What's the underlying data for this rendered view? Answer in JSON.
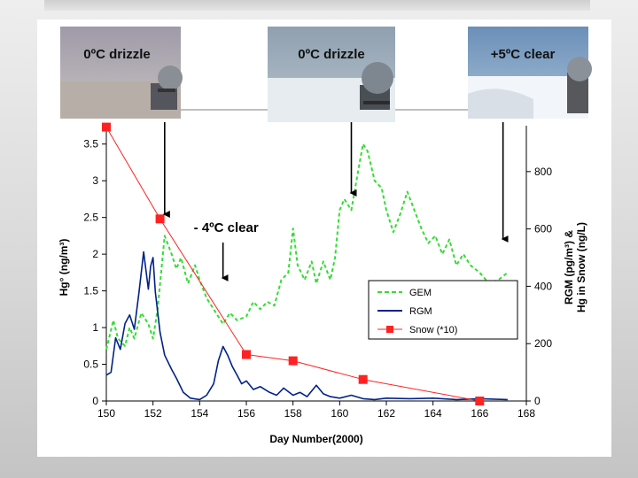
{
  "chart_data": {
    "type": "line",
    "xlabel": "Day Number(2000)",
    "ylabel_left": "Hg° (ng/m³)",
    "ylabel_right_line1": "RGM (pg/m³) &",
    "ylabel_right_line2": "Hg in Snow (ng/L)",
    "xlim": [
      150,
      168
    ],
    "ylim_left": [
      0,
      3.75
    ],
    "ylim_right": [
      0,
      960
    ],
    "x_ticks": [
      "150",
      "152",
      "154",
      "156",
      "158",
      "160",
      "162",
      "164",
      "166",
      "168"
    ],
    "y_left_ticks": [
      "0",
      "0.5",
      "1",
      "1.5",
      "2",
      "2.5",
      "3",
      "3.5"
    ],
    "y_right_ticks": [
      "0",
      "200",
      "400",
      "600",
      "800"
    ],
    "legend": {
      "position": "center-right",
      "entries": [
        "GEM",
        "RGM",
        "Snow (*10)"
      ]
    },
    "series": [
      {
        "name": "GEM",
        "axis": "left",
        "color": "#33dd33",
        "style": "dashed",
        "x": [
          150.0,
          150.3,
          150.5,
          150.8,
          151.0,
          151.2,
          151.5,
          151.8,
          152.0,
          152.2,
          152.5,
          152.8,
          153.0,
          153.2,
          153.5,
          153.8,
          154.0,
          154.3,
          154.6,
          155.0,
          155.3,
          155.6,
          156.0,
          156.3,
          156.6,
          156.9,
          157.2,
          157.5,
          157.8,
          158.0,
          158.2,
          158.5,
          158.8,
          159.0,
          159.3,
          159.6,
          159.8,
          160.0,
          160.2,
          160.5,
          160.8,
          161.0,
          161.2,
          161.5,
          161.8,
          162.0,
          162.3,
          162.6,
          162.9,
          163.2,
          163.5,
          163.8,
          164.1,
          164.4,
          164.7,
          165.0,
          165.3,
          165.6,
          166.0,
          166.4,
          166.8,
          167.2
        ],
        "y": [
          0.7,
          1.1,
          0.85,
          0.75,
          1.0,
          0.85,
          1.2,
          1.05,
          0.85,
          1.25,
          2.25,
          2.0,
          1.8,
          1.95,
          1.6,
          1.85,
          1.65,
          1.4,
          1.25,
          1.05,
          1.2,
          1.1,
          1.15,
          1.35,
          1.25,
          1.35,
          1.3,
          1.65,
          1.75,
          2.35,
          1.85,
          1.65,
          1.9,
          1.6,
          1.9,
          1.65,
          1.95,
          2.6,
          2.75,
          2.6,
          3.15,
          3.5,
          3.4,
          3.0,
          2.9,
          2.6,
          2.3,
          2.55,
          2.85,
          2.6,
          2.35,
          2.15,
          2.25,
          2.0,
          2.2,
          1.85,
          2.0,
          1.85,
          1.75,
          1.6,
          1.65,
          1.75
        ]
      },
      {
        "name": "RGM",
        "axis": "right",
        "color": "#002288",
        "style": "solid",
        "x": [
          150.0,
          150.2,
          150.4,
          150.6,
          150.8,
          151.0,
          151.2,
          151.4,
          151.6,
          151.8,
          151.9,
          152.0,
          152.1,
          152.3,
          152.5,
          152.8,
          153.0,
          153.3,
          153.6,
          154.0,
          154.3,
          154.6,
          154.8,
          155.0,
          155.2,
          155.4,
          155.6,
          155.8,
          156.0,
          156.3,
          156.6,
          157.0,
          157.3,
          157.6,
          158.0,
          158.3,
          158.6,
          159.0,
          159.3,
          159.6,
          160.0,
          160.5,
          161.0,
          161.5,
          162.0,
          163.0,
          164.0,
          165.0,
          166.0,
          167.2
        ],
        "y": [
          90,
          100,
          220,
          180,
          270,
          300,
          250,
          380,
          520,
          390,
          470,
          500,
          380,
          240,
          160,
          110,
          80,
          30,
          10,
          5,
          20,
          60,
          140,
          190,
          160,
          120,
          90,
          60,
          70,
          40,
          50,
          30,
          20,
          45,
          20,
          30,
          15,
          55,
          25,
          15,
          10,
          20,
          8,
          5,
          10,
          8,
          10,
          5,
          8,
          5
        ]
      },
      {
        "name": "Snow (*10)",
        "axis": "right",
        "color": "#ff2222",
        "style": "solid-marker",
        "x": [
          150,
          152.3,
          156,
          158,
          161,
          166
        ],
        "y": [
          955,
          635,
          162,
          140,
          75,
          0
        ]
      }
    ],
    "annotations": [
      {
        "text": "0ºC drizzle",
        "arrow_to_day": 152.5
      },
      {
        "text": "0ºC  drizzle",
        "arrow_to_day": 160.5
      },
      {
        "text": "+5ºC  clear",
        "arrow_to_day": 167.0
      },
      {
        "text": "- 4ºC  clear",
        "arrow_to_day": 155.0
      }
    ]
  }
}
